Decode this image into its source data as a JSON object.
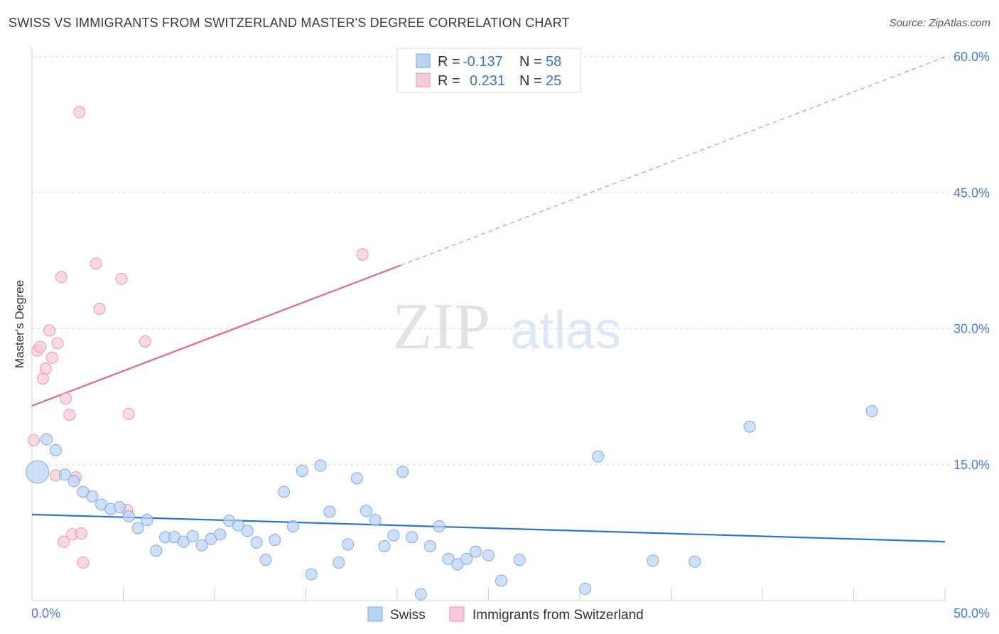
{
  "title": "SWISS VS IMMIGRANTS FROM SWITZERLAND MASTER'S DEGREE CORRELATION CHART",
  "source": "Source: ZipAtlas.com",
  "watermark": {
    "zip": "ZIP",
    "atlas": "atlas"
  },
  "colors": {
    "swiss_fill": "#b9d3f3",
    "swiss_stroke": "#7ea8e3",
    "swiss_line": "#2f72cc",
    "immig_fill": "#f8c9d6",
    "immig_stroke": "#e995ad",
    "immig_line": "#e0668f",
    "axis_text": "#4a7fd0",
    "grid": "#d9d9d9"
  },
  "legend": {
    "rows": [
      {
        "r_label": "R =",
        "r_value": "-0.137",
        "n_label": "N =",
        "n_value": "58"
      },
      {
        "r_label": "R =",
        "r_value": "0.231",
        "n_label": "N =",
        "n_value": "25"
      }
    ]
  },
  "bottom_legend": [
    "Swiss",
    "Immigrants from Switzerland"
  ],
  "chart_data": {
    "type": "scatter",
    "title": "SWISS VS IMMIGRANTS FROM SWITZERLAND MASTER'S DEGREE CORRELATION CHART",
    "xlabel": "",
    "ylabel": "Master's Degree",
    "xlim": [
      0,
      50
    ],
    "ylim": [
      0,
      60
    ],
    "x_tick_labels": [
      "0.0%",
      "50.0%"
    ],
    "y_tick_labels": [
      "15.0%",
      "30.0%",
      "45.0%",
      "60.0%"
    ],
    "y_ticks": [
      15,
      30,
      45,
      60
    ],
    "grid": true,
    "legend_position": "top-center",
    "series": [
      {
        "name": "Swiss",
        "r": -0.137,
        "n": 58,
        "trend": {
          "x0": 0,
          "y0": 9.5,
          "x1": 50,
          "y1": 6.5,
          "dashed_to": null
        },
        "points": [
          {
            "x": 0.3,
            "y": 14.2,
            "big": true
          },
          {
            "x": 0.8,
            "y": 17.8
          },
          {
            "x": 1.3,
            "y": 16.6
          },
          {
            "x": 1.8,
            "y": 13.9
          },
          {
            "x": 2.3,
            "y": 13.2
          },
          {
            "x": 2.8,
            "y": 12.0
          },
          {
            "x": 3.3,
            "y": 11.5
          },
          {
            "x": 3.8,
            "y": 10.6
          },
          {
            "x": 4.3,
            "y": 10.1
          },
          {
            "x": 4.8,
            "y": 10.3
          },
          {
            "x": 5.3,
            "y": 9.3
          },
          {
            "x": 5.8,
            "y": 8.0
          },
          {
            "x": 6.3,
            "y": 8.9
          },
          {
            "x": 6.8,
            "y": 5.5
          },
          {
            "x": 7.3,
            "y": 7.0
          },
          {
            "x": 7.8,
            "y": 7.0
          },
          {
            "x": 8.3,
            "y": 6.5
          },
          {
            "x": 8.8,
            "y": 7.1
          },
          {
            "x": 9.3,
            "y": 6.1
          },
          {
            "x": 9.8,
            "y": 6.8
          },
          {
            "x": 10.3,
            "y": 7.3
          },
          {
            "x": 10.8,
            "y": 8.8
          },
          {
            "x": 11.3,
            "y": 8.3
          },
          {
            "x": 11.8,
            "y": 7.7
          },
          {
            "x": 12.3,
            "y": 6.4
          },
          {
            "x": 12.8,
            "y": 4.5
          },
          {
            "x": 13.3,
            "y": 6.7
          },
          {
            "x": 13.8,
            "y": 12.0
          },
          {
            "x": 14.3,
            "y": 8.2
          },
          {
            "x": 14.8,
            "y": 14.3
          },
          {
            "x": 15.3,
            "y": 2.9
          },
          {
            "x": 15.8,
            "y": 14.9
          },
          {
            "x": 16.3,
            "y": 9.8
          },
          {
            "x": 16.8,
            "y": 4.2
          },
          {
            "x": 17.3,
            "y": 6.2
          },
          {
            "x": 17.8,
            "y": 13.5
          },
          {
            "x": 18.3,
            "y": 9.9
          },
          {
            "x": 18.8,
            "y": 8.9
          },
          {
            "x": 19.3,
            "y": 6.0
          },
          {
            "x": 19.8,
            "y": 7.2
          },
          {
            "x": 20.3,
            "y": 14.2
          },
          {
            "x": 20.8,
            "y": 7.0
          },
          {
            "x": 21.3,
            "y": 0.7
          },
          {
            "x": 21.8,
            "y": 6.0
          },
          {
            "x": 22.3,
            "y": 8.2
          },
          {
            "x": 22.8,
            "y": 4.6
          },
          {
            "x": 23.3,
            "y": 4.0
          },
          {
            "x": 23.8,
            "y": 4.6
          },
          {
            "x": 24.3,
            "y": 5.4
          },
          {
            "x": 25.0,
            "y": 5.0
          },
          {
            "x": 25.7,
            "y": 2.2
          },
          {
            "x": 26.7,
            "y": 4.5
          },
          {
            "x": 30.3,
            "y": 1.3
          },
          {
            "x": 31.0,
            "y": 15.9
          },
          {
            "x": 34.0,
            "y": 4.4
          },
          {
            "x": 36.3,
            "y": 4.3
          },
          {
            "x": 39.3,
            "y": 19.2
          },
          {
            "x": 46.0,
            "y": 20.9
          }
        ]
      },
      {
        "name": "Immigrants from Switzerland",
        "r": 0.231,
        "n": 25,
        "trend": {
          "x0": 0,
          "y0": 21.5,
          "x1": 20.2,
          "y1": 37.0,
          "dashed_to": {
            "x": 50,
            "y": 60
          }
        },
        "points": [
          {
            "x": 0.1,
            "y": 17.7
          },
          {
            "x": 0.3,
            "y": 27.6
          },
          {
            "x": 0.45,
            "y": 28.0
          },
          {
            "x": 0.6,
            "y": 24.5
          },
          {
            "x": 0.75,
            "y": 25.6
          },
          {
            "x": 0.95,
            "y": 29.8
          },
          {
            "x": 1.1,
            "y": 26.8
          },
          {
            "x": 1.3,
            "y": 13.8
          },
          {
            "x": 1.4,
            "y": 28.4
          },
          {
            "x": 1.6,
            "y": 35.7
          },
          {
            "x": 1.75,
            "y": 6.5
          },
          {
            "x": 1.85,
            "y": 22.3
          },
          {
            "x": 2.05,
            "y": 20.5
          },
          {
            "x": 2.2,
            "y": 7.3
          },
          {
            "x": 2.4,
            "y": 13.6
          },
          {
            "x": 2.6,
            "y": 53.9
          },
          {
            "x": 2.7,
            "y": 7.4
          },
          {
            "x": 2.8,
            "y": 4.2
          },
          {
            "x": 3.5,
            "y": 37.2
          },
          {
            "x": 3.7,
            "y": 32.2
          },
          {
            "x": 4.9,
            "y": 35.5
          },
          {
            "x": 5.2,
            "y": 10.0
          },
          {
            "x": 5.3,
            "y": 20.6
          },
          {
            "x": 6.2,
            "y": 28.6
          },
          {
            "x": 18.1,
            "y": 38.2
          }
        ]
      }
    ]
  }
}
